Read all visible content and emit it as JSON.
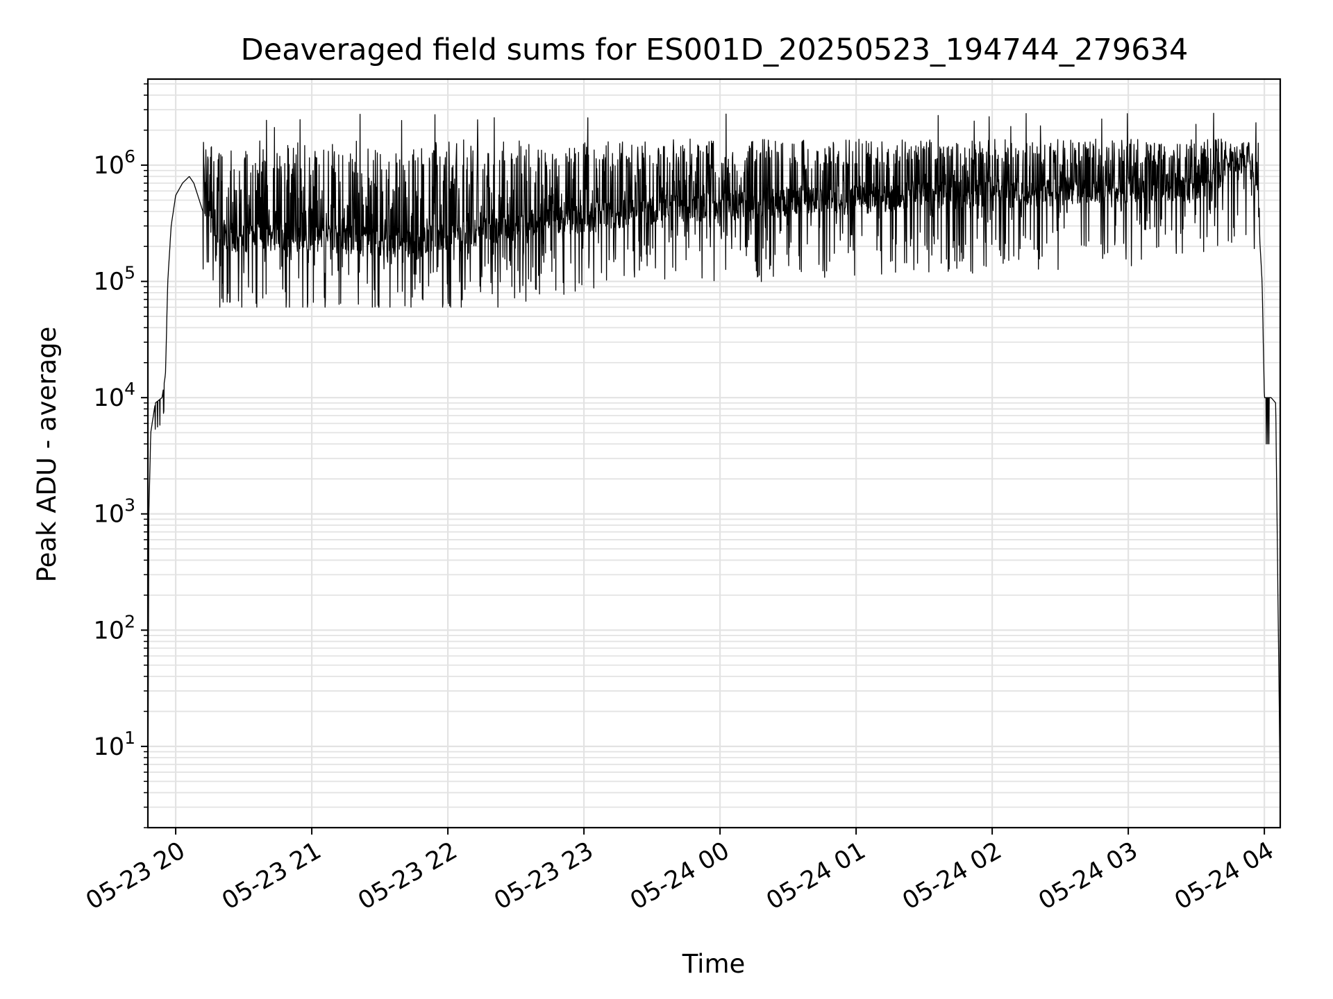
{
  "chart_data": {
    "type": "line",
    "title": "Deaveraged field sums for ES001D_20250523_194744_279634",
    "xlabel": "Time",
    "ylabel": "Peak ADU - average",
    "yscale": "log",
    "ylim": [
      2,
      5500000
    ],
    "xlim": [
      "2025-05-23 19:47:44",
      "2025-05-24 04:07:00"
    ],
    "grid": true,
    "x_ticks": [
      {
        "t": "2025-05-23 20:00",
        "label": "05-23 20"
      },
      {
        "t": "2025-05-23 21:00",
        "label": "05-23 21"
      },
      {
        "t": "2025-05-23 22:00",
        "label": "05-23 22"
      },
      {
        "t": "2025-05-23 23:00",
        "label": "05-23 23"
      },
      {
        "t": "2025-05-24 00:00",
        "label": "05-24 00"
      },
      {
        "t": "2025-05-24 01:00",
        "label": "05-24 01"
      },
      {
        "t": "2025-05-24 02:00",
        "label": "05-24 02"
      },
      {
        "t": "2025-05-24 03:00",
        "label": "05-24 03"
      },
      {
        "t": "2025-05-24 04:00",
        "label": "05-24 04"
      }
    ],
    "y_ticks": [
      {
        "value": 10,
        "base": "10",
        "exp": "1"
      },
      {
        "value": 100,
        "base": "10",
        "exp": "2"
      },
      {
        "value": 1000,
        "base": "10",
        "exp": "3"
      },
      {
        "value": 10000,
        "base": "10",
        "exp": "4"
      },
      {
        "value": 100000,
        "base": "10",
        "exp": "5"
      },
      {
        "value": 1000000,
        "base": "10",
        "exp": "6"
      }
    ],
    "series": [
      {
        "color": "#000000",
        "envelope_points": [
          [
            "2025-05-23 19:47:44",
            3
          ],
          [
            "2025-05-23 19:48:10",
            1000
          ],
          [
            "2025-05-23 19:49:00",
            5000
          ],
          [
            "2025-05-23 19:51:00",
            9000
          ],
          [
            "2025-05-23 19:54:00",
            10000
          ],
          [
            "2025-05-23 19:55:30",
            16000
          ],
          [
            "2025-05-23 19:56:30",
            100000
          ],
          [
            "2025-05-23 19:58:00",
            300000
          ],
          [
            "2025-05-23 20:00:00",
            550000
          ],
          [
            "2025-05-23 20:03:00",
            700000
          ],
          [
            "2025-05-23 20:06:00",
            800000
          ],
          [
            "2025-05-23 20:08:00",
            700000
          ],
          [
            "2025-05-23 20:12:00",
            400000
          ],
          [
            "2025-05-23 20:20:00",
            200000
          ],
          [
            "2025-05-23 21:00:00",
            200000
          ],
          [
            "2025-05-23 21:45:00",
            180000
          ],
          [
            "2025-05-23 22:30:00",
            250000
          ],
          [
            "2025-05-23 23:30:00",
            350000
          ],
          [
            "2025-05-24 00:30:00",
            400000
          ],
          [
            "2025-05-24 01:30:00",
            450000
          ],
          [
            "2025-05-24 02:30:00",
            500000
          ],
          [
            "2025-05-24 03:30:00",
            550000
          ],
          [
            "2025-05-24 03:53:00",
            1000000
          ],
          [
            "2025-05-24 03:57:00",
            500000
          ],
          [
            "2025-05-24 03:59:00",
            100000
          ],
          [
            "2025-05-24 04:00:00",
            10000
          ],
          [
            "2025-05-24 04:03:00",
            10000
          ],
          [
            "2025-05-24 04:05:00",
            9000
          ],
          [
            "2025-05-24 04:07:00",
            4
          ]
        ],
        "upper_envelope": 1400000,
        "lower_envelope": 60000,
        "max_peak": 2800000
      }
    ]
  }
}
